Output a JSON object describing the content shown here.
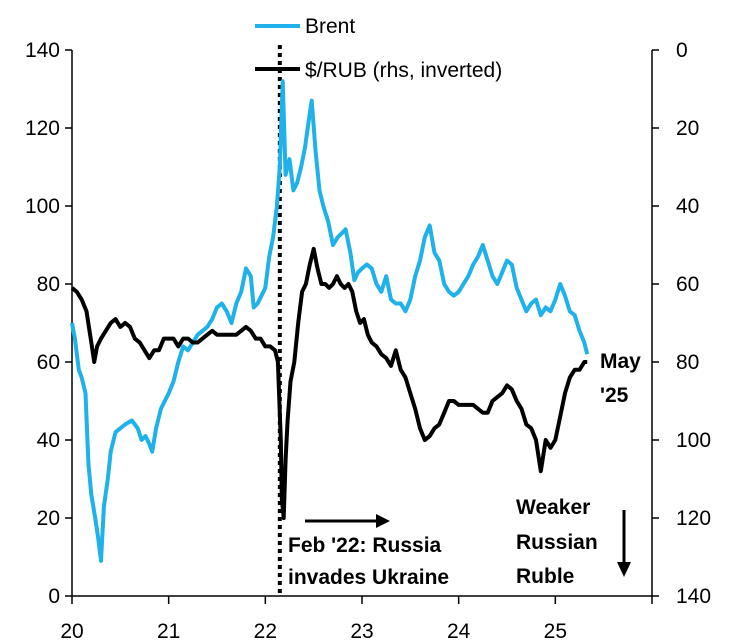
{
  "chart_data": {
    "type": "line",
    "title": "",
    "xlabel": "",
    "ylabel": "",
    "x_ticks": [
      "20",
      "21",
      "22",
      "23",
      "24",
      "25"
    ],
    "x_range": [
      2020.0,
      2026.0
    ],
    "ylim_left": [
      0,
      140
    ],
    "ylim_right_inverted": [
      0,
      140
    ],
    "left_ticks": [
      "0",
      "20",
      "40",
      "60",
      "80",
      "100",
      "120",
      "140"
    ],
    "right_ticks": [
      "0",
      "20",
      "40",
      "60",
      "80",
      "100",
      "120",
      "140"
    ],
    "grid": false,
    "legend_position": "top-center",
    "series": [
      {
        "name": "Brent",
        "axis": "left",
        "color": "#1fb1ea",
        "points": [
          [
            2020.0,
            70
          ],
          [
            2020.03,
            66
          ],
          [
            2020.07,
            58
          ],
          [
            2020.1,
            56
          ],
          [
            2020.14,
            52
          ],
          [
            2020.17,
            34
          ],
          [
            2020.2,
            26
          ],
          [
            2020.24,
            20
          ],
          [
            2020.27,
            15
          ],
          [
            2020.3,
            9
          ],
          [
            2020.33,
            23
          ],
          [
            2020.37,
            30
          ],
          [
            2020.4,
            37
          ],
          [
            2020.45,
            42
          ],
          [
            2020.5,
            43
          ],
          [
            2020.55,
            44
          ],
          [
            2020.62,
            45
          ],
          [
            2020.68,
            43
          ],
          [
            2020.72,
            40
          ],
          [
            2020.76,
            41
          ],
          [
            2020.8,
            39
          ],
          [
            2020.83,
            37
          ],
          [
            2020.87,
            43
          ],
          [
            2020.92,
            48
          ],
          [
            2020.96,
            50
          ],
          [
            2021.0,
            52
          ],
          [
            2021.05,
            55
          ],
          [
            2021.1,
            60
          ],
          [
            2021.15,
            64
          ],
          [
            2021.2,
            63
          ],
          [
            2021.25,
            65
          ],
          [
            2021.3,
            67
          ],
          [
            2021.35,
            68
          ],
          [
            2021.4,
            69
          ],
          [
            2021.45,
            71
          ],
          [
            2021.5,
            74
          ],
          [
            2021.55,
            75
          ],
          [
            2021.6,
            73
          ],
          [
            2021.65,
            70
          ],
          [
            2021.7,
            75
          ],
          [
            2021.75,
            78
          ],
          [
            2021.8,
            84
          ],
          [
            2021.85,
            82
          ],
          [
            2021.88,
            74
          ],
          [
            2021.92,
            75
          ],
          [
            2021.96,
            77
          ],
          [
            2022.0,
            79
          ],
          [
            2022.04,
            87
          ],
          [
            2022.08,
            92
          ],
          [
            2022.12,
            100
          ],
          [
            2022.15,
            110
          ],
          [
            2022.18,
            132
          ],
          [
            2022.21,
            108
          ],
          [
            2022.25,
            112
          ],
          [
            2022.29,
            104
          ],
          [
            2022.33,
            106
          ],
          [
            2022.37,
            110
          ],
          [
            2022.41,
            115
          ],
          [
            2022.45,
            122
          ],
          [
            2022.48,
            127
          ],
          [
            2022.52,
            114
          ],
          [
            2022.56,
            104
          ],
          [
            2022.6,
            100
          ],
          [
            2022.65,
            96
          ],
          [
            2022.7,
            90
          ],
          [
            2022.75,
            92
          ],
          [
            2022.79,
            93
          ],
          [
            2022.83,
            94
          ],
          [
            2022.88,
            88
          ],
          [
            2022.92,
            81
          ],
          [
            2022.96,
            83
          ],
          [
            2023.0,
            84
          ],
          [
            2023.05,
            85
          ],
          [
            2023.1,
            84
          ],
          [
            2023.15,
            80
          ],
          [
            2023.2,
            78
          ],
          [
            2023.25,
            82
          ],
          [
            2023.3,
            76
          ],
          [
            2023.35,
            75
          ],
          [
            2023.4,
            75
          ],
          [
            2023.45,
            73
          ],
          [
            2023.5,
            76
          ],
          [
            2023.55,
            82
          ],
          [
            2023.6,
            86
          ],
          [
            2023.65,
            92
          ],
          [
            2023.7,
            95
          ],
          [
            2023.75,
            88
          ],
          [
            2023.8,
            86
          ],
          [
            2023.85,
            80
          ],
          [
            2023.9,
            78
          ],
          [
            2023.95,
            77
          ],
          [
            2024.0,
            78
          ],
          [
            2024.05,
            80
          ],
          [
            2024.1,
            82
          ],
          [
            2024.15,
            85
          ],
          [
            2024.2,
            87
          ],
          [
            2024.25,
            90
          ],
          [
            2024.3,
            86
          ],
          [
            2024.35,
            82
          ],
          [
            2024.4,
            80
          ],
          [
            2024.45,
            83
          ],
          [
            2024.5,
            86
          ],
          [
            2024.55,
            85
          ],
          [
            2024.6,
            79
          ],
          [
            2024.65,
            76
          ],
          [
            2024.7,
            73
          ],
          [
            2024.75,
            75
          ],
          [
            2024.8,
            76
          ],
          [
            2024.85,
            72
          ],
          [
            2024.9,
            74
          ],
          [
            2024.95,
            73
          ],
          [
            2025.0,
            76
          ],
          [
            2025.05,
            80
          ],
          [
            2025.1,
            77
          ],
          [
            2025.15,
            73
          ],
          [
            2025.2,
            72
          ],
          [
            2025.25,
            68
          ],
          [
            2025.3,
            65
          ],
          [
            2025.33,
            62
          ]
        ]
      },
      {
        "name": "$/RUB (rhs, inverted)",
        "axis": "right",
        "color": "#000000",
        "points": [
          [
            2020.0,
            61
          ],
          [
            2020.05,
            62
          ],
          [
            2020.1,
            64
          ],
          [
            2020.15,
            67
          ],
          [
            2020.2,
            75
          ],
          [
            2020.23,
            80
          ],
          [
            2020.26,
            76
          ],
          [
            2020.3,
            74
          ],
          [
            2020.35,
            72
          ],
          [
            2020.4,
            70
          ],
          [
            2020.45,
            69
          ],
          [
            2020.5,
            71
          ],
          [
            2020.55,
            70
          ],
          [
            2020.6,
            71
          ],
          [
            2020.65,
            74
          ],
          [
            2020.7,
            75
          ],
          [
            2020.75,
            77
          ],
          [
            2020.8,
            79
          ],
          [
            2020.85,
            77
          ],
          [
            2020.9,
            77
          ],
          [
            2020.95,
            74
          ],
          [
            2021.0,
            74
          ],
          [
            2021.05,
            74
          ],
          [
            2021.1,
            76
          ],
          [
            2021.15,
            74
          ],
          [
            2021.2,
            74
          ],
          [
            2021.25,
            75
          ],
          [
            2021.3,
            75
          ],
          [
            2021.35,
            74
          ],
          [
            2021.4,
            73
          ],
          [
            2021.45,
            72
          ],
          [
            2021.5,
            73
          ],
          [
            2021.55,
            73
          ],
          [
            2021.6,
            73
          ],
          [
            2021.65,
            73
          ],
          [
            2021.7,
            73
          ],
          [
            2021.75,
            72
          ],
          [
            2021.8,
            71
          ],
          [
            2021.85,
            72
          ],
          [
            2021.9,
            74
          ],
          [
            2021.95,
            74
          ],
          [
            2022.0,
            76
          ],
          [
            2022.05,
            76
          ],
          [
            2022.1,
            77
          ],
          [
            2022.13,
            80
          ],
          [
            2022.16,
            100
          ],
          [
            2022.17,
            115
          ],
          [
            2022.19,
            120
          ],
          [
            2022.21,
            105
          ],
          [
            2022.23,
            95
          ],
          [
            2022.26,
            85
          ],
          [
            2022.3,
            80
          ],
          [
            2022.34,
            70
          ],
          [
            2022.38,
            62
          ],
          [
            2022.42,
            60
          ],
          [
            2022.46,
            55
          ],
          [
            2022.5,
            51
          ],
          [
            2022.54,
            56
          ],
          [
            2022.58,
            60
          ],
          [
            2022.62,
            60
          ],
          [
            2022.66,
            61
          ],
          [
            2022.7,
            60
          ],
          [
            2022.74,
            58
          ],
          [
            2022.78,
            60
          ],
          [
            2022.82,
            61
          ],
          [
            2022.86,
            60
          ],
          [
            2022.9,
            62
          ],
          [
            2022.94,
            67
          ],
          [
            2022.98,
            70
          ],
          [
            2023.02,
            69
          ],
          [
            2023.06,
            73
          ],
          [
            2023.1,
            75
          ],
          [
            2023.15,
            76
          ],
          [
            2023.2,
            78
          ],
          [
            2023.25,
            79
          ],
          [
            2023.3,
            81
          ],
          [
            2023.35,
            77
          ],
          [
            2023.4,
            82
          ],
          [
            2023.45,
            84
          ],
          [
            2023.5,
            88
          ],
          [
            2023.55,
            92
          ],
          [
            2023.6,
            97
          ],
          [
            2023.65,
            100
          ],
          [
            2023.7,
            99
          ],
          [
            2023.75,
            97
          ],
          [
            2023.8,
            96
          ],
          [
            2023.85,
            93
          ],
          [
            2023.9,
            90
          ],
          [
            2023.95,
            90
          ],
          [
            2024.0,
            91
          ],
          [
            2024.05,
            91
          ],
          [
            2024.1,
            91
          ],
          [
            2024.15,
            91
          ],
          [
            2024.2,
            92
          ],
          [
            2024.25,
            93
          ],
          [
            2024.3,
            93
          ],
          [
            2024.35,
            90
          ],
          [
            2024.4,
            89
          ],
          [
            2024.45,
            88
          ],
          [
            2024.5,
            86
          ],
          [
            2024.55,
            87
          ],
          [
            2024.6,
            90
          ],
          [
            2024.65,
            92
          ],
          [
            2024.7,
            96
          ],
          [
            2024.75,
            97
          ],
          [
            2024.8,
            100
          ],
          [
            2024.85,
            108
          ],
          [
            2024.9,
            100
          ],
          [
            2024.95,
            102
          ],
          [
            2025.0,
            100
          ],
          [
            2025.05,
            94
          ],
          [
            2025.1,
            88
          ],
          [
            2025.15,
            84
          ],
          [
            2025.2,
            82
          ],
          [
            2025.25,
            82
          ],
          [
            2025.3,
            80
          ],
          [
            2025.33,
            80
          ]
        ]
      }
    ],
    "reference_line": {
      "x": 2022.15,
      "style": "dotted",
      "label": "Feb '22: Russia invades Ukraine"
    },
    "annotations": {
      "event_line1": "Feb '22: Russia",
      "event_line2": "invades Ukraine",
      "end_line1": "May",
      "end_line2": "'25",
      "weak_line1": "Weaker",
      "weak_line2": "Russian",
      "weak_line3": "Ruble"
    }
  }
}
